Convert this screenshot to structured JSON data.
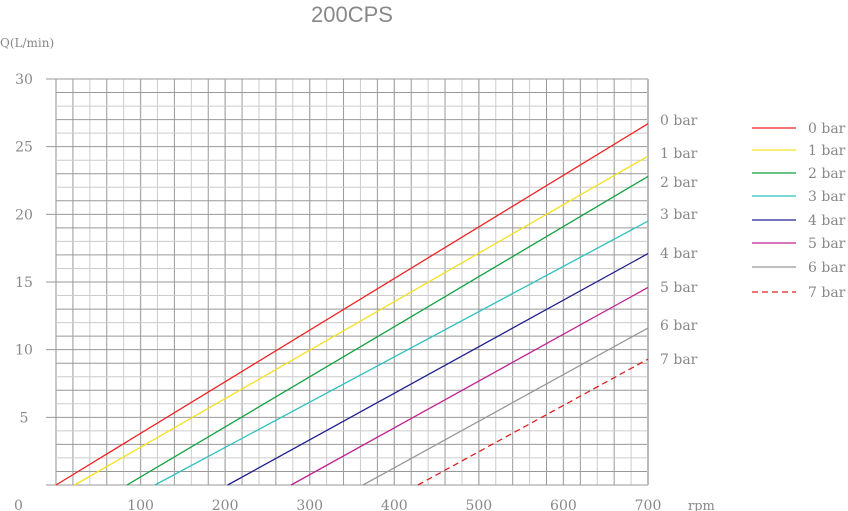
{
  "chart_data": {
    "type": "line",
    "title": "200CPS",
    "ylabel": "Q(L/min)",
    "xlabel": "rpm",
    "xlim": [
      0,
      700
    ],
    "ylim": [
      0,
      30
    ],
    "xticks": [
      "0",
      "100",
      "200",
      "300",
      "400",
      "500",
      "600",
      "700"
    ],
    "yticks": [
      "5",
      "10",
      "15",
      "20",
      "25",
      "30"
    ],
    "grid": true,
    "legend_position": "right",
    "series": [
      {
        "name": "0 bar",
        "color": "#ee2222",
        "dashed": false,
        "x": [
          0,
          700
        ],
        "y": [
          0,
          26.7
        ]
      },
      {
        "name": "1 bar",
        "color": "#f5e020",
        "dashed": false,
        "x": [
          22,
          700
        ],
        "y": [
          0,
          24.3
        ]
      },
      {
        "name": "2 bar",
        "color": "#10a040",
        "dashed": false,
        "x": [
          84,
          700
        ],
        "y": [
          0,
          22.8
        ]
      },
      {
        "name": "3 bar",
        "color": "#30c0c0",
        "dashed": false,
        "x": [
          117,
          700
        ],
        "y": [
          0,
          19.5
        ]
      },
      {
        "name": "4 bar",
        "color": "#202090",
        "dashed": false,
        "x": [
          203,
          700
        ],
        "y": [
          0,
          17.1
        ]
      },
      {
        "name": "5 bar",
        "color": "#c02090",
        "dashed": false,
        "x": [
          278,
          700
        ],
        "y": [
          0,
          14.6
        ]
      },
      {
        "name": "6 bar",
        "color": "#999999",
        "dashed": false,
        "x": [
          363,
          700
        ],
        "y": [
          0,
          11.6
        ]
      },
      {
        "name": "7 bar",
        "color": "#dd2222",
        "dashed": true,
        "x": [
          428,
          700
        ],
        "y": [
          0,
          9.3
        ]
      }
    ]
  }
}
